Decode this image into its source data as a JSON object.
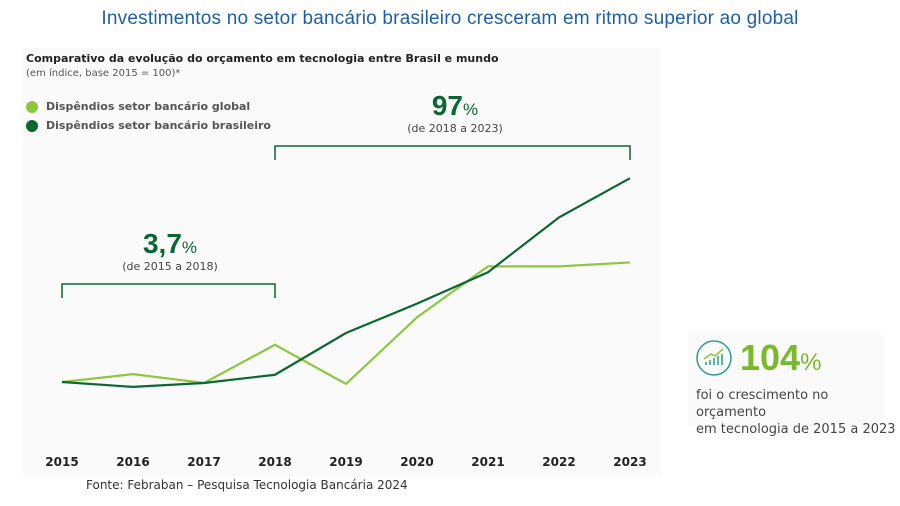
{
  "header": {
    "title": "Investimentos no setor bancário brasileiro cresceram em ritmo superior ao global"
  },
  "chart_data": {
    "type": "line",
    "title": "Comparativo da evolução do orçamento em tecnologia entre Brasil e mundo",
    "subtitle": "(em índice, base 2015 = 100)*",
    "xlabel": "",
    "ylabel": "",
    "categories": [
      "2015",
      "2016",
      "2017",
      "2018",
      "2019",
      "2020",
      "2021",
      "2022",
      "2023"
    ],
    "ylim": [
      90,
      215
    ],
    "grid": false,
    "legend_position": "top-left",
    "series": [
      {
        "name": "Dispêndios setor bancário global",
        "color": "#8dc63f",
        "values": [
          100,
          104,
          99.5,
          119,
          99,
          133,
          159,
          159,
          161
        ]
      },
      {
        "name": "Dispêndios setor bancário brasileiro",
        "color": "#0b6633",
        "values": [
          100,
          97.5,
          99.5,
          103.7,
          125,
          140,
          156,
          184,
          204
        ]
      }
    ],
    "annotations": [
      {
        "value": "3,7",
        "unit": "%",
        "label": "(de 2015 a 2018)",
        "from": "2015",
        "to": "2018"
      },
      {
        "value": "97",
        "unit": "%",
        "label": "(de 2018 a 2023)",
        "from": "2018",
        "to": "2023"
      }
    ]
  },
  "highlight": {
    "value": "104",
    "unit": "%",
    "text_line1": "foi o crescimento no orçamento",
    "text_line2": "em tecnologia de 2015 a 2023",
    "icon": "growth-chart-icon"
  },
  "source": "Fonte: Febraban – Pesquisa Tecnologia Bancária 2024"
}
